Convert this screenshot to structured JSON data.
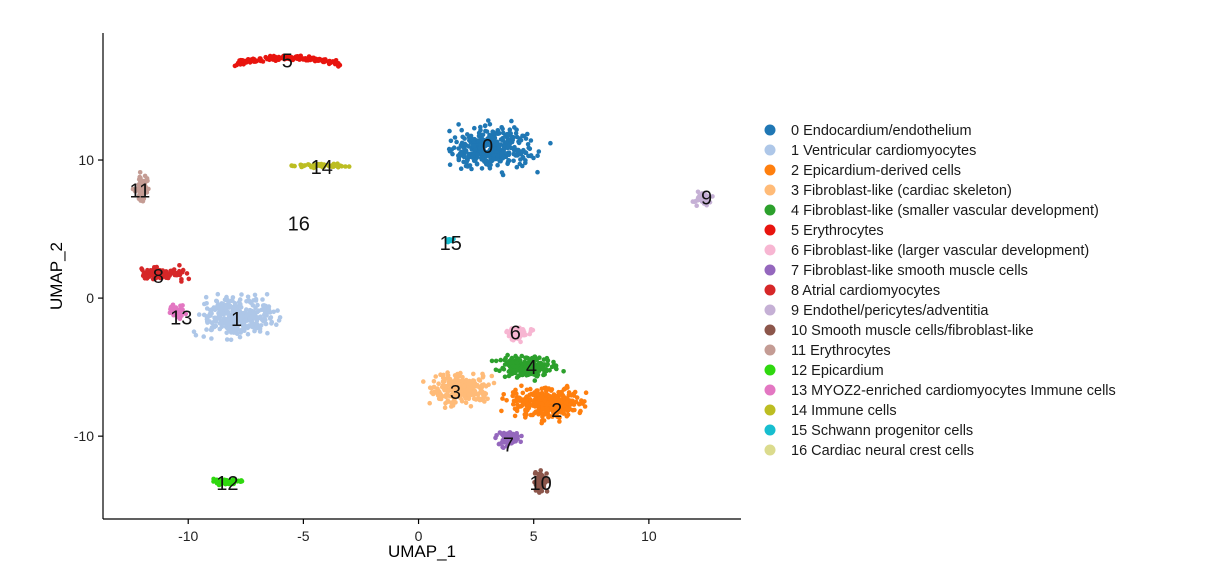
{
  "chart_data": {
    "type": "scatter",
    "xlabel": "UMAP_1",
    "ylabel": "UMAP_2",
    "xlim": [
      -13.7,
      14.0
    ],
    "ylim": [
      -16.0,
      19.2
    ],
    "x_ticks": [
      -10,
      -5,
      0,
      5,
      10
    ],
    "y_ticks": [
      -10,
      0,
      10
    ],
    "grid": false,
    "legend_position": "right",
    "clusters": [
      {
        "id": "0",
        "name": "Endocardium/endothelium",
        "color": "#1f77b4",
        "center": [
          3.3,
          10.8
        ],
        "spread": [
          1.6,
          1.3
        ],
        "label_pos": [
          3.0,
          11.0
        ],
        "n": 380
      },
      {
        "id": "1",
        "name": "Ventricular cardiomyocytes",
        "color": "#aec7e8",
        "center": [
          -7.9,
          -1.3
        ],
        "spread": [
          1.4,
          1.2
        ],
        "label_pos": [
          -7.9,
          -1.5
        ],
        "n": 330
      },
      {
        "id": "2",
        "name": "Epicardium-derived cells",
        "color": "#ff7f0e",
        "center": [
          5.5,
          -7.6
        ],
        "spread": [
          1.4,
          0.9
        ],
        "label_pos": [
          6.0,
          -8.1
        ],
        "n": 340
      },
      {
        "id": "3",
        "name": "Fibroblast-like (cardiac skeleton)",
        "color": "#ffbb78",
        "center": [
          1.8,
          -6.6
        ],
        "spread": [
          1.1,
          1.0
        ],
        "label_pos": [
          1.6,
          -6.8
        ],
        "n": 230
      },
      {
        "id": "4",
        "name": "Fibroblast-like (smaller vascular development)",
        "color": "#2ca02c",
        "center": [
          4.7,
          -5.0
        ],
        "spread": [
          1.1,
          0.7
        ],
        "label_pos": [
          4.9,
          -5.0
        ],
        "n": 210
      },
      {
        "id": "5",
        "name": "Erythrocytes",
        "color": "#e8140e",
        "center": [
          -5.7,
          17.4
        ],
        "spread": [
          2.2,
          0.2
        ],
        "label_pos": [
          -5.7,
          17.2
        ],
        "n": 150
      },
      {
        "id": "6",
        "name": "Fibroblast-like (larger vascular development)",
        "color": "#f7b6d2",
        "center": [
          4.3,
          -2.5
        ],
        "spread": [
          0.45,
          0.45
        ],
        "label_pos": [
          4.2,
          -2.5
        ],
        "n": 70
      },
      {
        "id": "7",
        "name": "Fibroblast-like smooth muscle cells",
        "color": "#9467bd",
        "center": [
          4.0,
          -10.2
        ],
        "spread": [
          0.45,
          0.55
        ],
        "label_pos": [
          3.9,
          -10.6
        ],
        "n": 80
      },
      {
        "id": "8",
        "name": "Atrial cardiomyocytes",
        "color": "#d62728",
        "center": [
          -11.1,
          1.8
        ],
        "spread": [
          0.9,
          0.4
        ],
        "label_pos": [
          -11.3,
          1.6
        ],
        "n": 90
      },
      {
        "id": "9",
        "name": "Endothel/pericytes/adventitia",
        "color": "#c5b0d5",
        "center": [
          12.3,
          7.2
        ],
        "spread": [
          0.35,
          0.45
        ],
        "label_pos": [
          12.5,
          7.3
        ],
        "n": 40
      },
      {
        "id": "10",
        "name": "Smooth muscle cells/fibroblast-like",
        "color": "#8c564b",
        "center": [
          5.3,
          -13.3
        ],
        "spread": [
          0.25,
          0.65
        ],
        "label_pos": [
          5.3,
          -13.4
        ],
        "n": 70
      },
      {
        "id": "11",
        "name": "Erythrocytes",
        "color": "#c49c94",
        "center": [
          -12.0,
          8.0
        ],
        "spread": [
          0.25,
          0.9
        ],
        "label_pos": [
          -12.1,
          7.8
        ],
        "n": 60
      },
      {
        "id": "12",
        "name": "Epicardium",
        "color": "#2fd80f",
        "center": [
          -8.3,
          -13.3
        ],
        "spread": [
          0.55,
          0.18
        ],
        "label_pos": [
          -8.3,
          -13.4
        ],
        "n": 70
      },
      {
        "id": "13",
        "name": "MYOZ2-enriched cardiomyocytes Immune cells",
        "color": "#e377c2",
        "center": [
          -10.5,
          -1.0
        ],
        "spread": [
          0.35,
          0.5
        ],
        "label_pos": [
          -10.3,
          -1.4
        ],
        "n": 35
      },
      {
        "id": "14",
        "name": "Immune cells",
        "color": "#bcbd22",
        "center": [
          -4.2,
          9.6
        ],
        "spread": [
          0.9,
          0.12
        ],
        "label_pos": [
          -4.2,
          9.5
        ],
        "n": 60
      },
      {
        "id": "15",
        "name": "Schwann progenitor cells",
        "color": "#17becf",
        "center": [
          1.3,
          4.2
        ],
        "spread": [
          0.15,
          0.1
        ],
        "label_pos": [
          1.4,
          4.0
        ],
        "n": 8
      },
      {
        "id": "16",
        "name": "Cardiac neural crest cells",
        "color": "#dbdb8d",
        "center": [
          -5.1,
          5.4
        ],
        "spread": [
          0.05,
          0.05
        ],
        "label_pos": [
          -5.2,
          5.4
        ],
        "n": 0
      }
    ]
  }
}
